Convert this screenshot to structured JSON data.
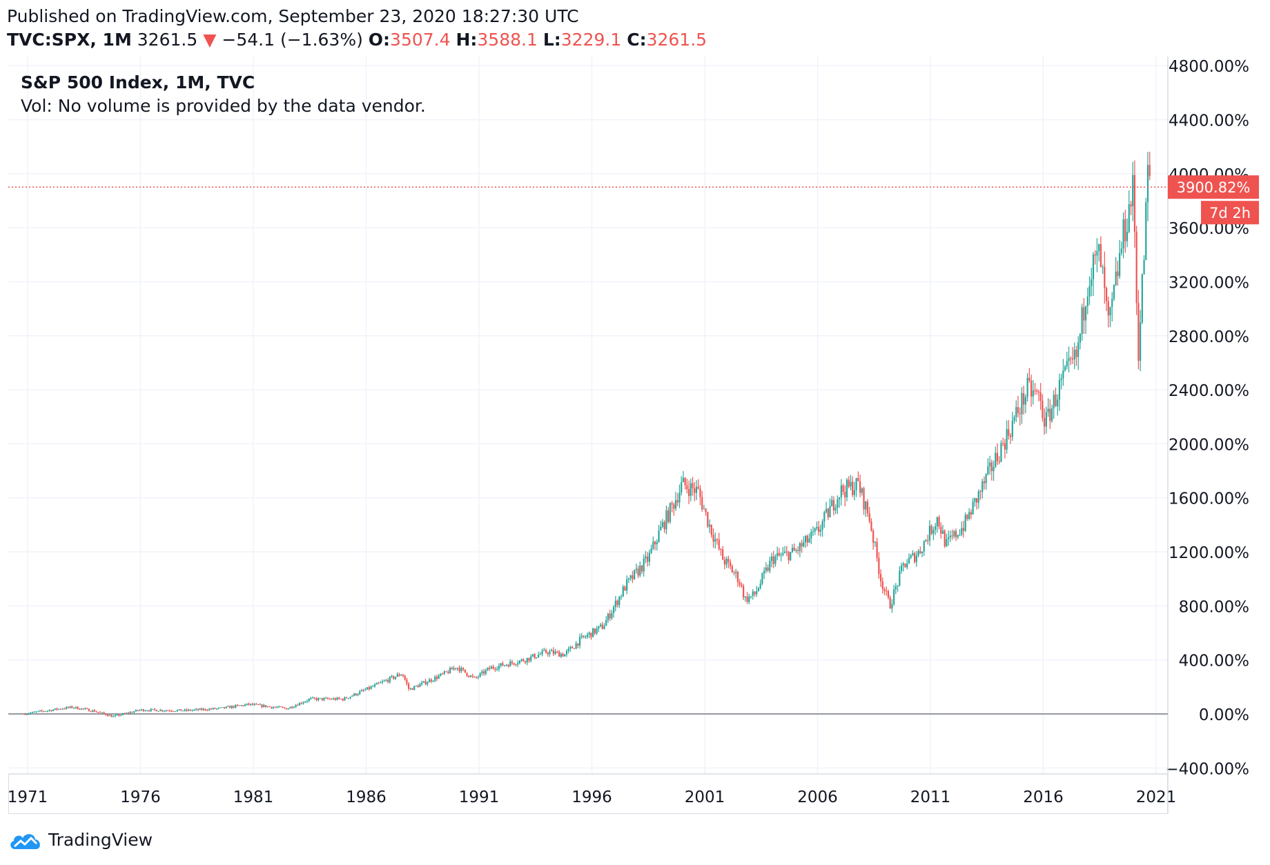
{
  "header": {
    "published": "Published on TradingView.com, September 23, 2020 18:27:30 UTC",
    "symbol": "TVC:SPX, 1M",
    "last": "3261.5",
    "change": "−54.1 (−1.63%)",
    "open_label": "O:",
    "open": "3507.4",
    "high_label": "H:",
    "high": "3588.1",
    "low_label": "L:",
    "low": "3229.1",
    "close_label": "C:",
    "close": "3261.5"
  },
  "legend": {
    "title": "S&P 500 Index, 1M, TVC",
    "volume_note": "Vol: No volume is provided by the data vendor."
  },
  "price_tag": {
    "value": "3900.82%",
    "countdown": "7d 2h"
  },
  "footer": {
    "brand": "TradingView"
  },
  "colors": {
    "up": "#26a69a",
    "down": "#ef5350",
    "grid": "#f0f3fa",
    "zero_line": "#9598a1",
    "text": "#131722"
  },
  "chart_data": {
    "type": "candlestick",
    "y_unit": "% change",
    "ylim": [
      -450,
      4850
    ],
    "y_ticks": [
      -400,
      0,
      400,
      800,
      1200,
      1600,
      2000,
      2400,
      2800,
      3200,
      3600,
      4000,
      4400,
      4800
    ],
    "y_tick_labels": [
      "−400.00%",
      "0.00%",
      "400.00%",
      "800.00%",
      "1200.00%",
      "1600.00%",
      "2000.00%",
      "2400.00%",
      "2800.00%",
      "3200.00%",
      "3600.00%",
      "4000.00%",
      "4400.00%",
      "4800.00%"
    ],
    "xlim": [
      1970.8,
      2021.9
    ],
    "x_ticks": [
      1971,
      1976,
      1981,
      1986,
      1991,
      1996,
      2001,
      2006,
      2011,
      2016,
      2021
    ],
    "x_tick_labels": [
      "1971",
      "1976",
      "1981",
      "1986",
      "1991",
      "1996",
      "2001",
      "2006",
      "2011",
      "2016",
      "2021"
    ],
    "zero_line": 0,
    "last_value_line": 3900.82,
    "grid": true,
    "series_path": [
      [
        1970.8,
        0
      ],
      [
        1972.5,
        40
      ],
      [
        1973.0,
        50
      ],
      [
        1974.0,
        20
      ],
      [
        1974.8,
        -20
      ],
      [
        1976.0,
        30
      ],
      [
        1978.0,
        25
      ],
      [
        1979.5,
        40
      ],
      [
        1980.8,
        70
      ],
      [
        1982.5,
        40
      ],
      [
        1983.5,
        110
      ],
      [
        1985.0,
        110
      ],
      [
        1986.0,
        180
      ],
      [
        1987.6,
        300
      ],
      [
        1987.9,
        180
      ],
      [
        1989.5,
        300
      ],
      [
        1990.0,
        350
      ],
      [
        1990.8,
        260
      ],
      [
        1991.5,
        340
      ],
      [
        1993.0,
        400
      ],
      [
        1994.0,
        460
      ],
      [
        1994.8,
        440
      ],
      [
        1995.5,
        550
      ],
      [
        1996.5,
        650
      ],
      [
        1997.5,
        950
      ],
      [
        1998.5,
        1150
      ],
      [
        1999.0,
        1350
      ],
      [
        1999.6,
        1550
      ],
      [
        2000.0,
        1700
      ],
      [
        2000.7,
        1650
      ],
      [
        2001.2,
        1400
      ],
      [
        2001.8,
        1150
      ],
      [
        2002.5,
        1000
      ],
      [
        2002.8,
        850
      ],
      [
        2003.2,
        880
      ],
      [
        2004.0,
        1150
      ],
      [
        2005.0,
        1200
      ],
      [
        2006.0,
        1350
      ],
      [
        2007.0,
        1650
      ],
      [
        2007.8,
        1700
      ],
      [
        2008.3,
        1450
      ],
      [
        2008.8,
        1000
      ],
      [
        2009.2,
        800
      ],
      [
        2009.8,
        1100
      ],
      [
        2010.5,
        1200
      ],
      [
        2011.3,
        1450
      ],
      [
        2011.7,
        1250
      ],
      [
        2012.5,
        1400
      ],
      [
        2013.5,
        1750
      ],
      [
        2014.5,
        2100
      ],
      [
        2015.3,
        2400
      ],
      [
        2015.8,
        2350
      ],
      [
        2016.1,
        2150
      ],
      [
        2016.8,
        2450
      ],
      [
        2017.5,
        2650
      ],
      [
        2018.0,
        3250
      ],
      [
        2018.5,
        3400
      ],
      [
        2018.9,
        2850
      ],
      [
        2019.5,
        3500
      ],
      [
        2020.0,
        3900
      ],
      [
        2020.2,
        2650
      ],
      [
        2020.5,
        3500
      ],
      [
        2020.65,
        4100
      ],
      [
        2020.72,
        3900
      ]
    ]
  }
}
